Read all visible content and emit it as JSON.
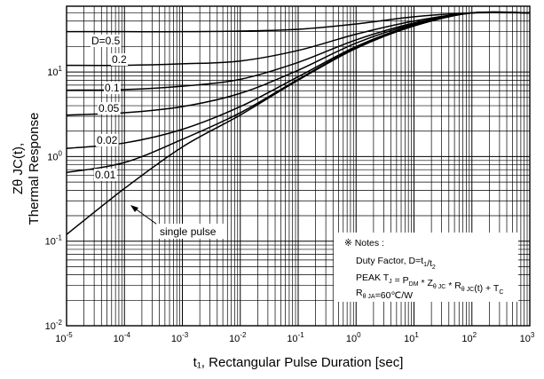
{
  "chart_data": {
    "type": "line",
    "title": "",
    "xlabel": "t₁, Rectangular Pulse Duration [sec]",
    "ylabel_line1": "Zθ JC(t),",
    "ylabel_line2": "Thermal Response",
    "xscale": "log",
    "yscale": "log",
    "xlim": [
      1e-05,
      1000
    ],
    "ylim": [
      0.01,
      60
    ],
    "grid": true,
    "x_tick_labels": [
      "10-5",
      "10-4",
      "10-3",
      "10-2",
      "10-1",
      "100",
      "101",
      "102",
      "103"
    ],
    "y_tick_labels": [
      "10-2",
      "10-1",
      "100",
      "101"
    ],
    "series": [
      {
        "name": "D=0.5",
        "x": [
          1e-05,
          0.0001,
          0.001,
          0.01,
          0.1,
          1,
          10,
          100,
          1000
        ],
        "y": [
          30,
          30,
          30,
          30.5,
          32,
          37,
          45,
          50,
          50
        ]
      },
      {
        "name": "0.2",
        "x": [
          1e-05,
          0.0001,
          0.001,
          0.01,
          0.1,
          1,
          10,
          100,
          1000
        ],
        "y": [
          12,
          12,
          12.5,
          13.5,
          18,
          28,
          40,
          50,
          50
        ]
      },
      {
        "name": "0.1",
        "x": [
          1e-05,
          0.0001,
          0.001,
          0.01,
          0.1,
          1,
          10,
          100,
          1000
        ],
        "y": [
          6.1,
          6.2,
          6.8,
          8.2,
          13,
          24,
          38,
          50,
          50
        ]
      },
      {
        "name": "0.05",
        "x": [
          1e-05,
          0.0001,
          0.001,
          0.01,
          0.1,
          1,
          10,
          100,
          1000
        ],
        "y": [
          3.1,
          3.3,
          3.9,
          5.6,
          10.5,
          22,
          37,
          50,
          50
        ]
      },
      {
        "name": "0.02",
        "x": [
          1e-05,
          0.0001,
          0.001,
          0.01,
          0.1,
          1,
          10,
          100,
          1000
        ],
        "y": [
          1.25,
          1.45,
          2.1,
          3.9,
          8.8,
          20,
          36,
          50,
          50
        ]
      },
      {
        "name": "0.01",
        "x": [
          1e-05,
          0.0001,
          0.001,
          0.01,
          0.1,
          1,
          10,
          100,
          1000
        ],
        "y": [
          0.65,
          0.85,
          1.6,
          3.3,
          8.2,
          19.5,
          36,
          50,
          50
        ]
      },
      {
        "name": "single pulse",
        "x": [
          1e-05,
          0.0001,
          0.001,
          0.01,
          0.1,
          1,
          10,
          100,
          1000
        ],
        "y": [
          0.12,
          0.42,
          1.3,
          3.1,
          8.0,
          19,
          35,
          50,
          50
        ]
      }
    ],
    "annotation_label": "single pulse",
    "notes": {
      "header": "※ Notes :",
      "line1": "Duty Factor, D=t1/t2",
      "line2": "PEAK TJ = PDM * Zθ JC * Rθ JC(t) + TC",
      "line3": "Rθ JA=60℃/W"
    }
  }
}
